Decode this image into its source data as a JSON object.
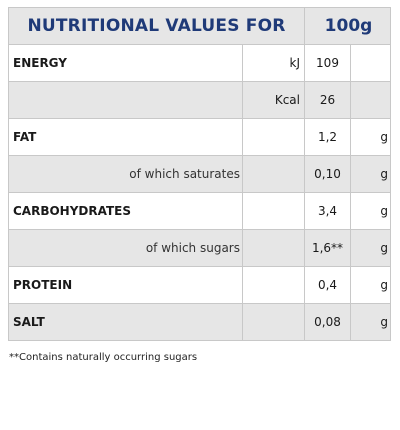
{
  "header": {
    "title": "NUTRITIONAL VALUES FOR",
    "per": "100g"
  },
  "rows": [
    {
      "label": "ENERGY",
      "unit": "kJ",
      "value": "109",
      "g": ""
    },
    {
      "label": "",
      "unit": "Kcal",
      "value": "26",
      "g": ""
    },
    {
      "label": "FAT",
      "unit": "",
      "value": "1,2",
      "g": "g"
    },
    {
      "label": "of which saturates",
      "unit": "",
      "value": "0,10",
      "g": "g"
    },
    {
      "label": "CARBOHYDRATES",
      "unit": "",
      "value": "3,4",
      "g": "g"
    },
    {
      "label": "of which sugars",
      "unit": "",
      "value": "1,6**",
      "g": "g"
    },
    {
      "label": "PROTEIN",
      "unit": "",
      "value": "0,4",
      "g": "g"
    },
    {
      "label": "SALT",
      "unit": "",
      "value": "0,08",
      "g": "g"
    }
  ],
  "footnote": "**Contains naturally occurring sugars",
  "colors": {
    "title": "#1f3a78",
    "shade": "#e6e6e6",
    "border": "#c8c8c8"
  }
}
